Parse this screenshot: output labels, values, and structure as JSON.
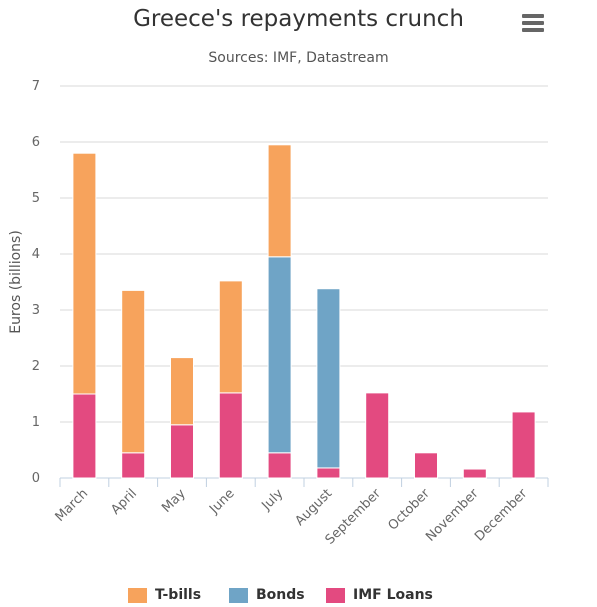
{
  "colors": {
    "tbills": "#f7a35c",
    "bonds": "#6fa4c6",
    "imf": "#e34a80",
    "grid": "#d8d8d8",
    "axis_text": "#666666"
  },
  "chart_data": {
    "type": "bar",
    "stacked": true,
    "title": "Greece's repayments crunch",
    "subtitle": "Sources: IMF, Datastream",
    "ylabel": "Euros (billions)",
    "xlabel": "",
    "ylim": [
      0,
      7
    ],
    "yticks": [
      0,
      1,
      2,
      3,
      4,
      5,
      6,
      7
    ],
    "grid": true,
    "legend_position": "bottom-center",
    "categories": [
      "March",
      "April",
      "May",
      "June",
      "July",
      "August",
      "September",
      "October",
      "November",
      "December"
    ],
    "series": [
      {
        "name": "T-bills",
        "color": "#f7a35c",
        "values": [
          4.3,
          2.9,
          1.2,
          2.0,
          2.0,
          0,
          0,
          0,
          0,
          0
        ]
      },
      {
        "name": "Bonds",
        "color": "#6fa4c6",
        "values": [
          0,
          0,
          0,
          0,
          3.5,
          3.2,
          0,
          0,
          0,
          0
        ]
      },
      {
        "name": "IMF Loans",
        "color": "#e34a80",
        "values": [
          1.5,
          0.45,
          0.95,
          1.52,
          0.45,
          0.18,
          1.52,
          0.45,
          0.16,
          1.18
        ]
      }
    ]
  }
}
